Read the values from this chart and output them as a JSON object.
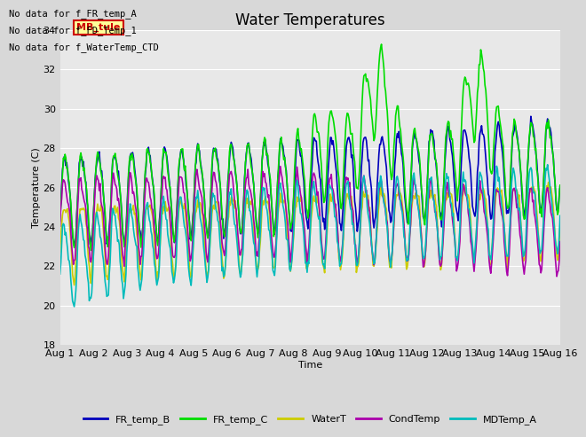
{
  "title": "Water Temperatures",
  "xlabel": "Time",
  "ylabel": "Temperature (C)",
  "ylim": [
    18,
    34
  ],
  "xlim": [
    0,
    15
  ],
  "xtick_labels": [
    "Aug 1",
    "Aug 2",
    "Aug 3",
    "Aug 4",
    "Aug 5",
    "Aug 6",
    "Aug 7",
    "Aug 8",
    "Aug 9",
    "Aug 10",
    "Aug 11",
    "Aug 12",
    "Aug 13",
    "Aug 14",
    "Aug 15",
    "Aug 16"
  ],
  "no_data_texts": [
    "No data for f_FR_temp_A",
    "No data for f_FD_Temp_1",
    "No data for f_WaterTemp_CTD"
  ],
  "mb_tule_box": {
    "text": "MB_tule",
    "color": "#cc0000",
    "bg": "#ffff99",
    "fontsize": 8
  },
  "bg_color": "#e8e8e8",
  "series": {
    "FR_temp_B": {
      "color": "#0000bb",
      "linewidth": 1.2
    },
    "FR_temp_C": {
      "color": "#00dd00",
      "linewidth": 1.2
    },
    "WaterT": {
      "color": "#cccc00",
      "linewidth": 1.2
    },
    "CondTemp": {
      "color": "#aa00aa",
      "linewidth": 1.2
    },
    "MDTemp_A": {
      "color": "#00bbbb",
      "linewidth": 1.2
    }
  },
  "legend_fontsize": 8,
  "title_fontsize": 12,
  "axis_fontsize": 8,
  "yticks": [
    18,
    20,
    22,
    24,
    26,
    28,
    30,
    32,
    34
  ]
}
